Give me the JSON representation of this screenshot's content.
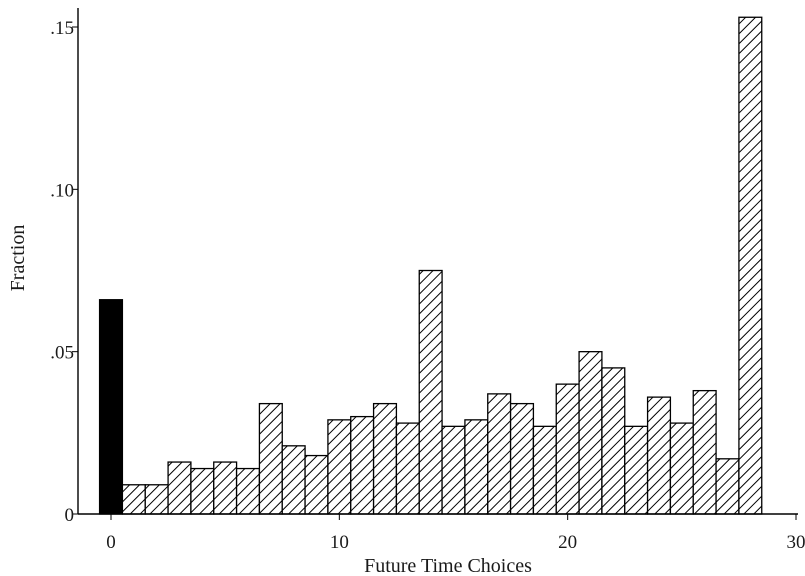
{
  "chart_data": {
    "type": "bar",
    "title": "",
    "xlabel": "Future Time Choices",
    "ylabel": "Fraction",
    "xlim": [
      -1,
      30
    ],
    "ylim": [
      0,
      0.155
    ],
    "x_ticks": [
      {
        "value": 0,
        "label": "0"
      },
      {
        "value": 10,
        "label": "10"
      },
      {
        "value": 20,
        "label": "20"
      },
      {
        "value": 30,
        "label": "30"
      }
    ],
    "y_ticks": [
      {
        "value": 0,
        "label": "0"
      },
      {
        "value": 0.05,
        "label": ".05"
      },
      {
        "value": 0.1,
        "label": ".10"
      },
      {
        "value": 0.15,
        "label": ".15"
      }
    ],
    "grid": false,
    "legend": "none",
    "fill_styles": {
      "solid": "#000000",
      "hatched": "diagonal-hatch"
    },
    "bars": [
      {
        "x": 0,
        "value": 0.066,
        "fill": "solid"
      },
      {
        "x": 1,
        "value": 0.009,
        "fill": "hatched"
      },
      {
        "x": 2,
        "value": 0.009,
        "fill": "hatched"
      },
      {
        "x": 3,
        "value": 0.016,
        "fill": "hatched"
      },
      {
        "x": 4,
        "value": 0.014,
        "fill": "hatched"
      },
      {
        "x": 5,
        "value": 0.016,
        "fill": "hatched"
      },
      {
        "x": 6,
        "value": 0.014,
        "fill": "hatched"
      },
      {
        "x": 7,
        "value": 0.034,
        "fill": "hatched"
      },
      {
        "x": 8,
        "value": 0.021,
        "fill": "hatched"
      },
      {
        "x": 9,
        "value": 0.018,
        "fill": "hatched"
      },
      {
        "x": 10,
        "value": 0.029,
        "fill": "hatched"
      },
      {
        "x": 11,
        "value": 0.03,
        "fill": "hatched"
      },
      {
        "x": 12,
        "value": 0.034,
        "fill": "hatched"
      },
      {
        "x": 13,
        "value": 0.028,
        "fill": "hatched"
      },
      {
        "x": 14,
        "value": 0.075,
        "fill": "hatched"
      },
      {
        "x": 15,
        "value": 0.027,
        "fill": "hatched"
      },
      {
        "x": 16,
        "value": 0.029,
        "fill": "hatched"
      },
      {
        "x": 17,
        "value": 0.037,
        "fill": "hatched"
      },
      {
        "x": 18,
        "value": 0.034,
        "fill": "hatched"
      },
      {
        "x": 19,
        "value": 0.027,
        "fill": "hatched"
      },
      {
        "x": 20,
        "value": 0.04,
        "fill": "hatched"
      },
      {
        "x": 21,
        "value": 0.05,
        "fill": "hatched"
      },
      {
        "x": 22,
        "value": 0.045,
        "fill": "hatched"
      },
      {
        "x": 23,
        "value": 0.027,
        "fill": "hatched"
      },
      {
        "x": 24,
        "value": 0.036,
        "fill": "hatched"
      },
      {
        "x": 25,
        "value": 0.028,
        "fill": "hatched"
      },
      {
        "x": 26,
        "value": 0.038,
        "fill": "hatched"
      },
      {
        "x": 27,
        "value": 0.017,
        "fill": "hatched"
      },
      {
        "x": 28,
        "value": 0.153,
        "fill": "hatched"
      }
    ]
  }
}
